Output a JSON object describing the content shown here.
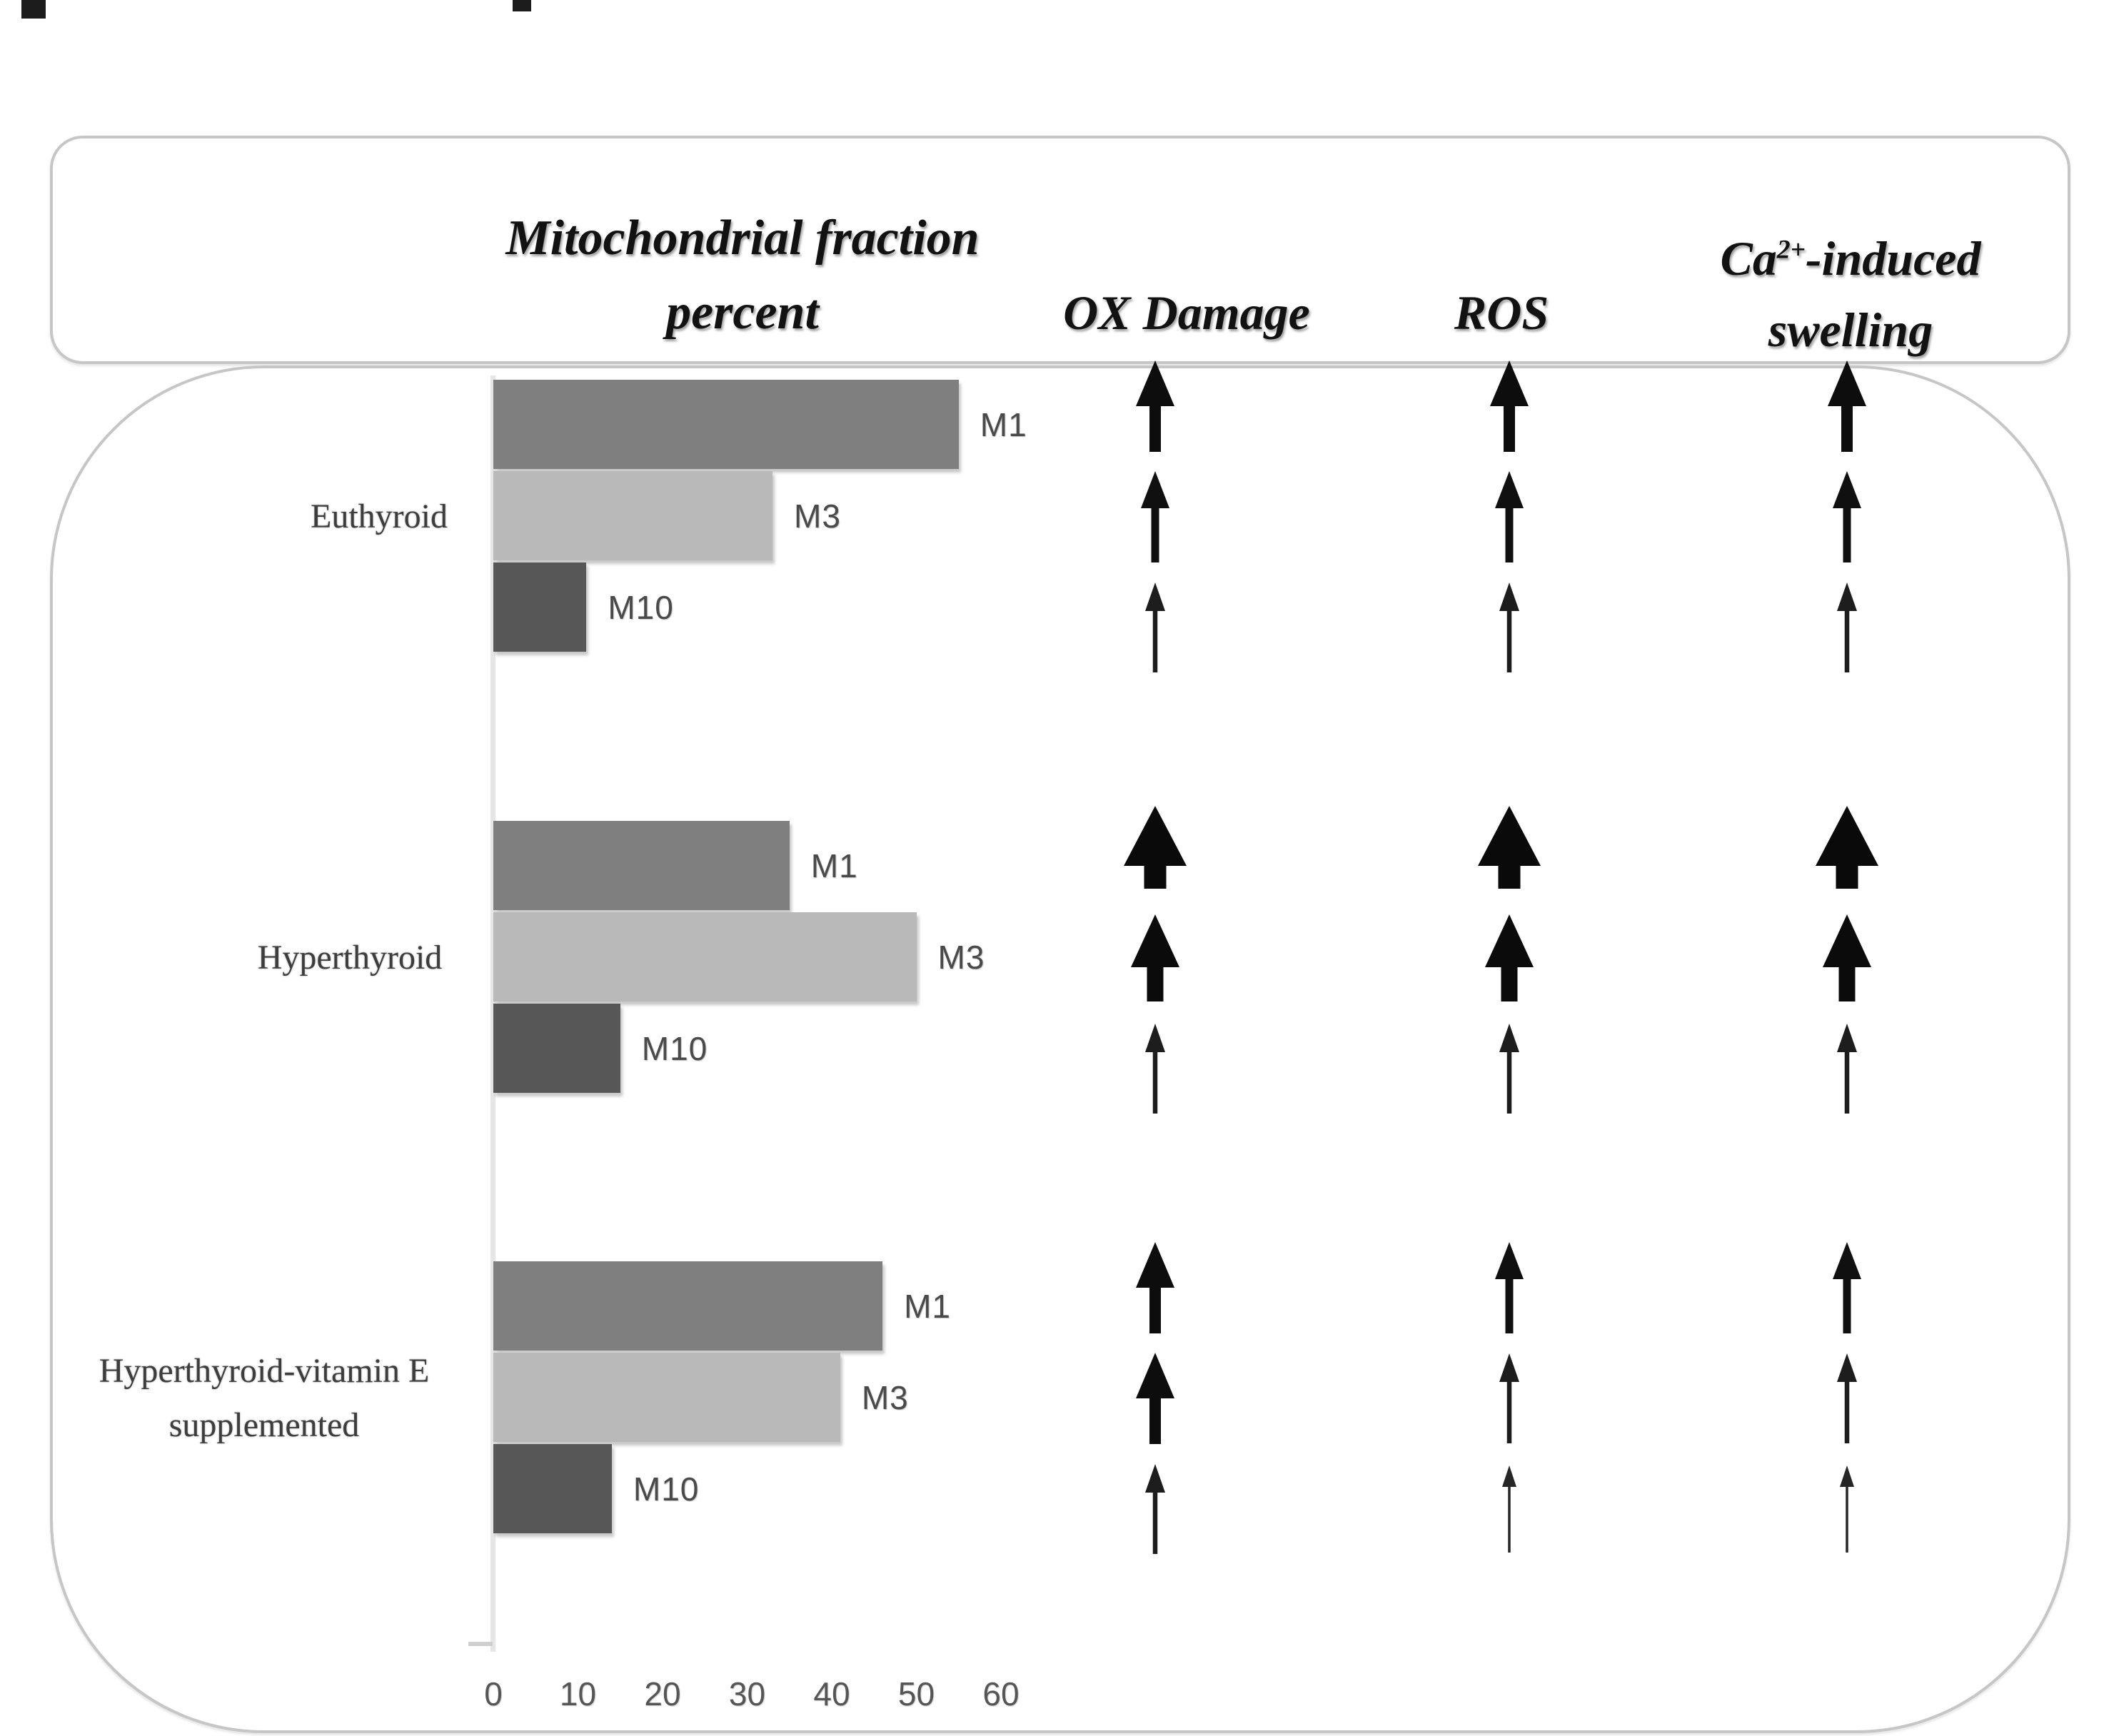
{
  "header": {
    "mito_line1": "Mitochondrial fraction",
    "mito_line2": "percent",
    "ox_damage": "OX Damage",
    "ros": "ROS",
    "ca_base": "Ca",
    "ca_sup": "2+",
    "ca_rest": "-induced",
    "ca_line2": "swelling"
  },
  "chart_data": {
    "type": "bar",
    "orientation": "horizontal",
    "title": "Mitochondrial fraction percent",
    "categories": [
      "Euthyroid",
      "Hyperthyroid",
      "Hyperthyroid-vitamin E supplemented"
    ],
    "series": [
      {
        "name": "M1",
        "values": [
          55,
          35,
          46
        ]
      },
      {
        "name": "M3",
        "values": [
          33,
          50,
          41
        ]
      },
      {
        "name": "M10",
        "values": [
          11,
          15,
          14
        ]
      }
    ],
    "xlim": [
      0,
      60
    ],
    "xticks": [
      0,
      10,
      20,
      30,
      40,
      50,
      60
    ],
    "grid": false,
    "legend_position": "none",
    "bar_colors": {
      "M1": "#7f7f7f",
      "M3": "#b9b9b9",
      "M10": "#575757"
    },
    "arrow_color": "#0f0f0f",
    "arrow_columns": [
      "OX Damage",
      "ROS",
      "Ca2+-induced swelling"
    ],
    "arrow_size_scale": "0=hairline,1=thin,2=medium,3=medium-bold,4=large,5=x-large"
  },
  "groups": [
    {
      "label_lines": [
        "Euthyroid"
      ],
      "rows": [
        {
          "fraction": "M1",
          "value": 55,
          "arrows": {
            "ox_damage": 3,
            "ros": 3,
            "ca_swelling": 3
          }
        },
        {
          "fraction": "M3",
          "value": 33,
          "arrows": {
            "ox_damage": 2,
            "ros": 2,
            "ca_swelling": 2
          }
        },
        {
          "fraction": "M10",
          "value": 11,
          "arrows": {
            "ox_damage": 1,
            "ros": 1,
            "ca_swelling": 1
          }
        }
      ]
    },
    {
      "label_lines": [
        "Hyperthyroid"
      ],
      "rows": [
        {
          "fraction": "M1",
          "value": 35,
          "arrows": {
            "ox_damage": 5,
            "ros": 5,
            "ca_swelling": 5
          }
        },
        {
          "fraction": "M3",
          "value": 50,
          "arrows": {
            "ox_damage": 4,
            "ros": 4,
            "ca_swelling": 4
          }
        },
        {
          "fraction": "M10",
          "value": 15,
          "arrows": {
            "ox_damage": 1,
            "ros": 1,
            "ca_swelling": 1
          }
        }
      ]
    },
    {
      "label_lines": [
        "Hyperthyroid-vitamin E",
        "supplemented"
      ],
      "rows": [
        {
          "fraction": "M1",
          "value": 46,
          "arrows": {
            "ox_damage": 3,
            "ros": 2,
            "ca_swelling": 2
          }
        },
        {
          "fraction": "M3",
          "value": 41,
          "arrows": {
            "ox_damage": 3,
            "ros": 1,
            "ca_swelling": 1
          }
        },
        {
          "fraction": "M10",
          "value": 14,
          "arrows": {
            "ox_damage": 1,
            "ros": 0,
            "ca_swelling": 0
          }
        }
      ]
    }
  ]
}
